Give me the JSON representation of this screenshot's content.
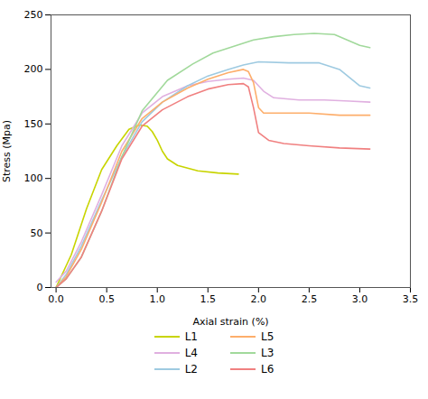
{
  "chart_data": {
    "type": "line",
    "xlabel": "Axial strain (%)",
    "ylabel": "Stress (Mpa)",
    "xlim": [
      -0.05,
      3.5
    ],
    "ylim": [
      0,
      250
    ],
    "xticks": [
      {
        "value": 0,
        "label": "0.0"
      },
      {
        "value": 0.5,
        "label": "0.5"
      },
      {
        "value": 1.0,
        "label": "1.0"
      },
      {
        "value": 1.5,
        "label": "1.5"
      },
      {
        "value": 2.0,
        "label": "2.0"
      },
      {
        "value": 2.5,
        "label": "2.5"
      },
      {
        "value": 3.0,
        "label": "3.0"
      },
      {
        "value": 3.5,
        "label": "3.5"
      }
    ],
    "yticks": [
      0,
      50,
      100,
      150,
      200,
      250
    ],
    "legend": "bottom",
    "series": [
      {
        "name": "L1",
        "color": "#c8d400",
        "x": [
          0.0,
          0.15,
          0.3,
          0.45,
          0.6,
          0.72,
          0.82,
          0.9,
          0.95,
          1.0,
          1.05,
          1.1,
          1.2,
          1.4,
          1.6,
          1.8
        ],
        "values": [
          0,
          30,
          72,
          108,
          130,
          145,
          149,
          148,
          143,
          135,
          125,
          118,
          112,
          107,
          105,
          104
        ]
      },
      {
        "name": "L4",
        "color": "#e0b0e0",
        "x": [
          0.0,
          0.1,
          0.25,
          0.45,
          0.65,
          0.85,
          1.05,
          1.3,
          1.5,
          1.7,
          1.85,
          1.95,
          2.05,
          2.15,
          2.4,
          2.65,
          2.9,
          3.1
        ],
        "values": [
          5,
          15,
          42,
          85,
          130,
          160,
          175,
          185,
          189,
          191,
          192,
          190,
          180,
          174,
          172,
          172,
          171,
          170
        ]
      },
      {
        "name": "L2",
        "color": "#9ecae1",
        "x": [
          0.0,
          0.1,
          0.25,
          0.45,
          0.65,
          0.85,
          1.05,
          1.3,
          1.5,
          1.7,
          1.85,
          2.0,
          2.3,
          2.6,
          2.8,
          3.0,
          3.1
        ],
        "values": [
          0,
          12,
          38,
          80,
          120,
          152,
          170,
          185,
          194,
          200,
          204,
          207,
          206,
          206,
          200,
          185,
          183
        ]
      },
      {
        "name": "L5",
        "color": "#fdae6b",
        "x": [
          0.0,
          0.1,
          0.25,
          0.45,
          0.65,
          0.85,
          1.05,
          1.3,
          1.5,
          1.7,
          1.85,
          1.9,
          1.95,
          2.0,
          2.05,
          2.2,
          2.5,
          2.8,
          3.1
        ],
        "values": [
          0,
          10,
          35,
          78,
          125,
          155,
          170,
          183,
          191,
          197,
          200,
          198,
          188,
          165,
          160,
          160,
          160,
          158,
          158
        ]
      },
      {
        "name": "L3",
        "color": "#a1d99b",
        "x": [
          0.0,
          0.1,
          0.25,
          0.45,
          0.65,
          0.85,
          1.1,
          1.35,
          1.55,
          1.75,
          1.95,
          2.15,
          2.35,
          2.55,
          2.75,
          3.0,
          3.1
        ],
        "values": [
          0,
          8,
          28,
          70,
          120,
          162,
          190,
          205,
          215,
          221,
          227,
          230,
          232,
          233,
          232,
          222,
          220
        ]
      },
      {
        "name": "L6",
        "color": "#f08080",
        "x": [
          0.0,
          0.1,
          0.25,
          0.45,
          0.65,
          0.85,
          1.05,
          1.3,
          1.5,
          1.7,
          1.85,
          1.9,
          1.95,
          2.0,
          2.1,
          2.25,
          2.5,
          2.8,
          3.1
        ],
        "values": [
          0,
          8,
          28,
          70,
          118,
          148,
          163,
          175,
          182,
          186,
          187,
          184,
          165,
          142,
          135,
          132,
          130,
          128,
          127
        ]
      }
    ]
  }
}
